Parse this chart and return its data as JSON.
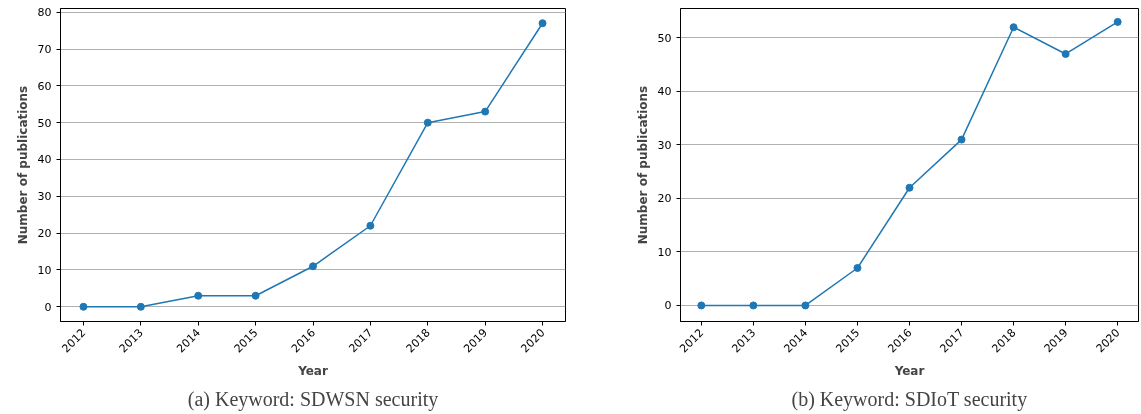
{
  "chart_data": [
    {
      "type": "line",
      "title": "(a) Keyword: SDWSN security",
      "xlabel": "Year",
      "ylabel": "Number of publications",
      "categories": [
        "2012",
        "2013",
        "2014",
        "2015",
        "2016",
        "2017",
        "2018",
        "2019",
        "2020"
      ],
      "series": [
        {
          "color": "#1f77b4",
          "values": [
            0,
            0,
            3,
            3,
            11,
            22,
            50,
            53,
            77
          ]
        }
      ],
      "ylim": [
        -4,
        81
      ],
      "yticks": [
        0,
        10,
        20,
        30,
        40,
        50,
        60,
        70,
        80
      ],
      "grid": "y",
      "marker": "circle",
      "line_style": "solid"
    },
    {
      "type": "line",
      "title": "(b) Keyword: SDIoT security",
      "xlabel": "Year",
      "ylabel": "Number of publications",
      "categories": [
        "2012",
        "2013",
        "2014",
        "2015",
        "2016",
        "2017",
        "2018",
        "2019",
        "2020"
      ],
      "series": [
        {
          "color": "#1f77b4",
          "values": [
            0,
            0,
            0,
            7,
            22,
            31,
            52,
            47,
            53
          ]
        }
      ],
      "ylim": [
        -3,
        55.5
      ],
      "yticks": [
        0,
        10,
        20,
        30,
        40,
        50
      ],
      "grid": "y",
      "marker": "circle",
      "line_style": "solid"
    }
  ]
}
